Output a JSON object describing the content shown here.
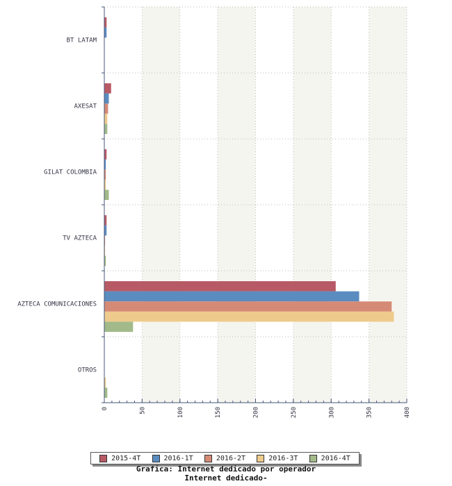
{
  "chart_data": {
    "type": "bar",
    "orientation": "horizontal",
    "categories": [
      "BT LATAM",
      "AXESAT",
      "GILAT COLOMBIA",
      "TV AZTECA",
      "AZTECA COMUNICACIONES",
      "OTROS"
    ],
    "series": [
      {
        "name": "2015-4T",
        "color": "#b85a66",
        "values": [
          3,
          9,
          3,
          3,
          306,
          0
        ]
      },
      {
        "name": "2016-1T",
        "color": "#5b8cc0",
        "values": [
          3,
          6,
          2,
          3,
          337,
          0
        ]
      },
      {
        "name": "2016-2T",
        "color": "#d58a76",
        "values": [
          0,
          5,
          2,
          1,
          380,
          0
        ]
      },
      {
        "name": "2016-3T",
        "color": "#eecb8c",
        "values": [
          0,
          4,
          2,
          1,
          383,
          2
        ]
      },
      {
        "name": "2016-4T",
        "color": "#a2ba8a",
        "values": [
          0,
          4,
          6,
          2,
          38,
          4
        ]
      }
    ],
    "xlim": [
      0,
      400
    ],
    "xticks": [
      "0",
      "50",
      "100",
      "150",
      "200",
      "250",
      "300",
      "350",
      "400"
    ],
    "grid": true,
    "legend_position": "bottom",
    "caption_lines": [
      "Grafica: Internet dedicado por operador",
      "Internet dedicado-"
    ]
  }
}
